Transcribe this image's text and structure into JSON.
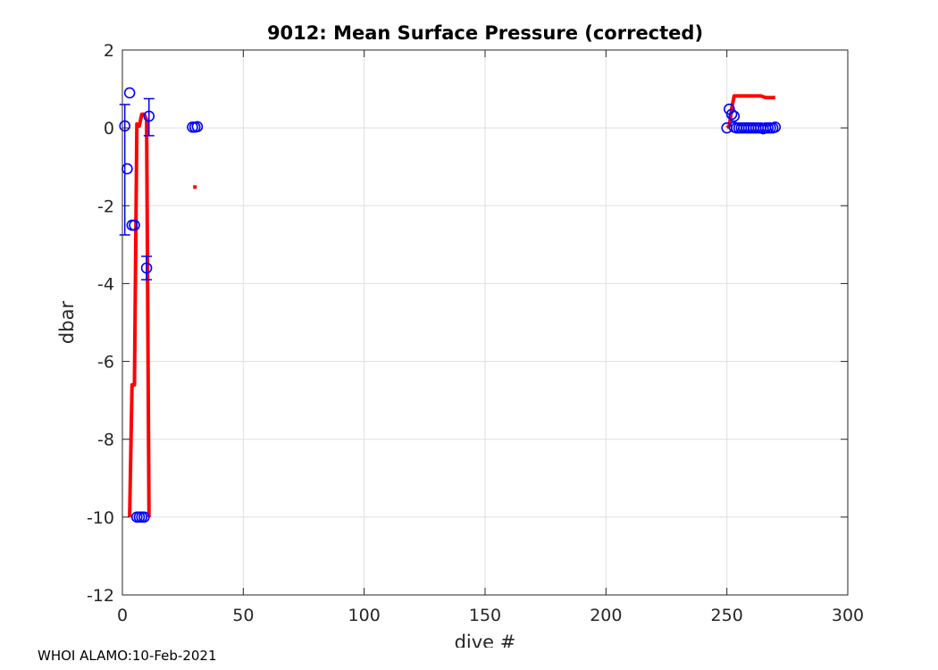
{
  "footer": "WHOI ALAMO:10-Feb-2021",
  "chart_data": {
    "type": "scatter",
    "title": "9012: Mean Surface Pressure (corrected)",
    "xlabel": "dive #",
    "ylabel": "dbar",
    "xlim": [
      0,
      300
    ],
    "ylim": [
      -12,
      2
    ],
    "xticks": [
      0,
      50,
      100,
      150,
      200,
      250,
      300
    ],
    "yticks": [
      -12,
      -10,
      -8,
      -6,
      -4,
      -2,
      0,
      2
    ],
    "grid": true,
    "colors": {
      "points": "#0000ff",
      "errorbars": "#0000ff",
      "line": "#ff0000"
    },
    "points": [
      {
        "x": 1,
        "y": 0.05
      },
      {
        "x": 2,
        "y": -1.05
      },
      {
        "x": 3,
        "y": 0.9
      },
      {
        "x": 4,
        "y": -2.5
      },
      {
        "x": 5,
        "y": -2.5
      },
      {
        "x": 6,
        "y": -10.0
      },
      {
        "x": 7,
        "y": -10.0
      },
      {
        "x": 8,
        "y": -10.0
      },
      {
        "x": 9,
        "y": -10.0
      },
      {
        "x": 10,
        "y": -3.6
      },
      {
        "x": 11,
        "y": 0.3
      },
      {
        "x": 29,
        "y": 0.02
      },
      {
        "x": 30,
        "y": 0.02
      },
      {
        "x": 31,
        "y": 0.03
      },
      {
        "x": 250,
        "y": 0.0
      },
      {
        "x": 251,
        "y": 0.48
      },
      {
        "x": 252,
        "y": 0.35
      },
      {
        "x": 253,
        "y": 0.3
      },
      {
        "x": 253,
        "y": 0.02
      },
      {
        "x": 254,
        "y": 0.0
      },
      {
        "x": 255,
        "y": 0.0
      },
      {
        "x": 256,
        "y": 0.0
      },
      {
        "x": 257,
        "y": 0.0
      },
      {
        "x": 258,
        "y": 0.0
      },
      {
        "x": 259,
        "y": 0.0
      },
      {
        "x": 260,
        "y": 0.0
      },
      {
        "x": 261,
        "y": 0.0
      },
      {
        "x": 262,
        "y": 0.0
      },
      {
        "x": 263,
        "y": 0.0
      },
      {
        "x": 264,
        "y": 0.0
      },
      {
        "x": 265,
        "y": -0.02
      },
      {
        "x": 266,
        "y": 0.0
      },
      {
        "x": 267,
        "y": 0.0
      },
      {
        "x": 268,
        "y": 0.0
      },
      {
        "x": 269,
        "y": 0.0
      },
      {
        "x": 270,
        "y": 0.02
      }
    ],
    "errorbars": [
      {
        "x": 1,
        "lo": -2.75,
        "hi": 0.6
      },
      {
        "x": 10,
        "lo": -3.9,
        "hi": -3.3
      },
      {
        "x": 11,
        "lo": -0.2,
        "hi": 0.75
      }
    ],
    "line": [
      {
        "x": 3,
        "y": -10.0
      },
      {
        "x": 4,
        "y": -6.6
      },
      {
        "x": 5,
        "y": -6.6
      },
      {
        "x": 6,
        "y": 0.1
      },
      {
        "x": 7,
        "y": 0.05
      },
      {
        "x": 8,
        "y": 0.35
      },
      {
        "x": 9,
        "y": 0.35
      },
      {
        "x": 10,
        "y": 0.2
      },
      {
        "x": 11,
        "y": -10.0
      }
    ],
    "isolated_point": {
      "x": 30,
      "y": -1.52
    },
    "line2": [
      {
        "x": 250,
        "y": 0.0
      },
      {
        "x": 251,
        "y": 0.05
      },
      {
        "x": 252,
        "y": 0.5
      },
      {
        "x": 253,
        "y": 0.82
      },
      {
        "x": 264,
        "y": 0.82
      },
      {
        "x": 266,
        "y": 0.78
      },
      {
        "x": 270,
        "y": 0.78
      }
    ]
  }
}
